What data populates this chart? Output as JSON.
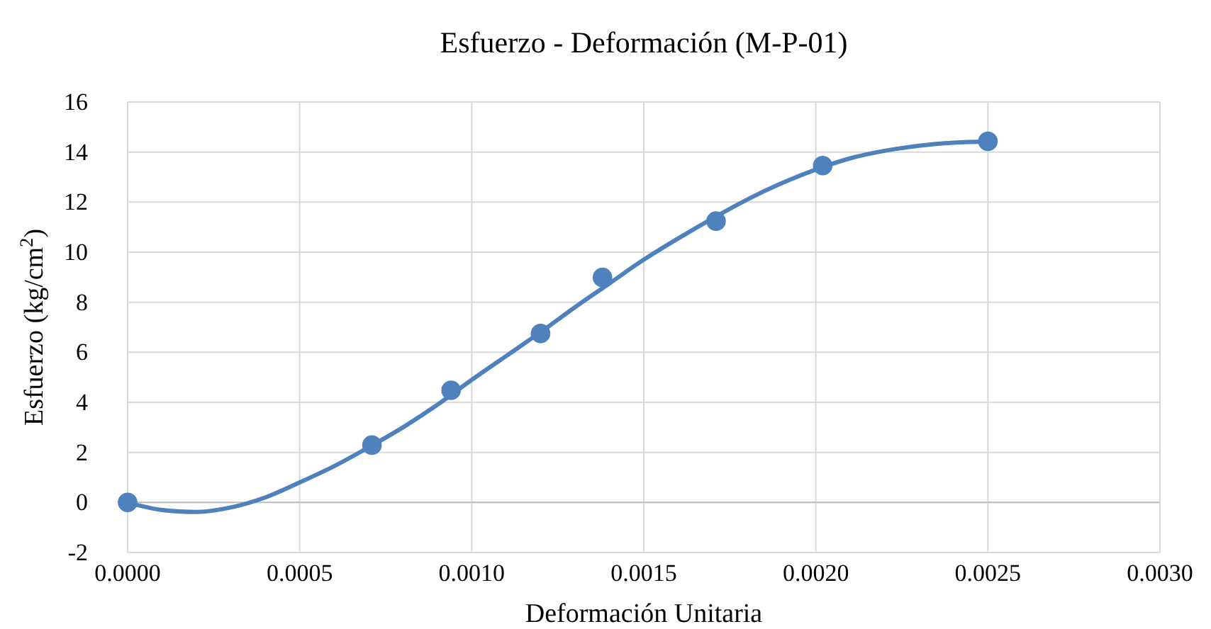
{
  "chart_data": {
    "type": "scatter",
    "title": "Esfuerzo - Deformación (M-P-01)",
    "xlabel": "Deformación Unitaria",
    "ylabel": "Esfuerzo (kg/cm$^{2}$)",
    "xlim": [
      0,
      0.003
    ],
    "xticks": [
      {
        "value": 0,
        "label": "0.0000"
      },
      {
        "value": 0.0005,
        "label": "0.0005"
      },
      {
        "value": 0.001,
        "label": "0.0010"
      },
      {
        "value": 0.0015,
        "label": "0.0015"
      },
      {
        "value": 0.002,
        "label": "0.0020"
      },
      {
        "value": 0.0025,
        "label": "0.0025"
      },
      {
        "value": 0.003,
        "label": "0.0030"
      }
    ],
    "ylim": [
      -2,
      16
    ],
    "yticks": [
      -2,
      0,
      2,
      4,
      6,
      8,
      10,
      12,
      14,
      16
    ],
    "grid": true,
    "series": [
      {
        "color": "#4f81bd",
        "marker": "circle",
        "x": [
          0,
          0.00071,
          0.00094,
          0.0012,
          0.00138,
          0.00171,
          0.00202,
          0.0025
        ],
        "values": [
          0,
          2.29,
          4.48,
          6.75,
          8.99,
          11.24,
          13.46,
          14.43
        ]
      },
      {
        "type": "line",
        "color": "#4f81bd",
        "marker": "none",
        "x": [
          0,
          0.0001,
          0.0002,
          0.0003,
          0.0004,
          0.0005,
          0.0006,
          0.0007,
          0.0008,
          0.0009,
          0.001,
          0.0011,
          0.0012,
          0.0013,
          0.0014,
          0.0015,
          0.0016,
          0.0017,
          0.0018,
          0.0019,
          0.002,
          0.0021,
          0.0022,
          0.0023,
          0.0024,
          0.0025
        ],
        "values": [
          0,
          -0.3,
          -0.38,
          -0.2,
          0.2,
          0.8,
          1.45,
          2.2,
          3.0,
          3.9,
          4.9,
          5.85,
          6.8,
          7.8,
          8.75,
          9.7,
          10.55,
          11.35,
          12.1,
          12.75,
          13.3,
          13.75,
          14.05,
          14.25,
          14.37,
          14.42
        ]
      }
    ]
  }
}
